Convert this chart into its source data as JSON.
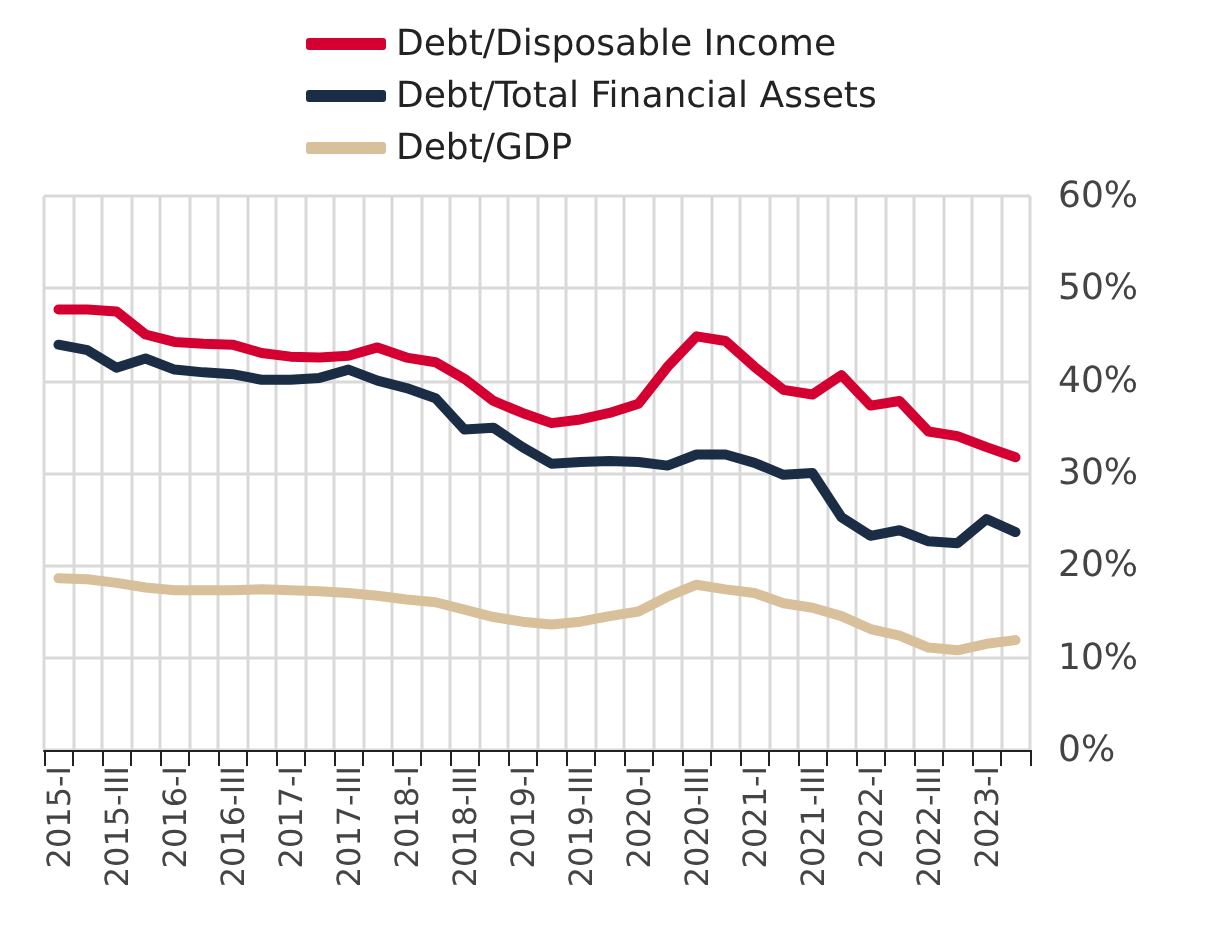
{
  "chart_data": {
    "type": "line",
    "categories": [
      "2015-I",
      null,
      "2015-III",
      null,
      "2016-I",
      null,
      "2016-III",
      null,
      "2017-I",
      null,
      "2017-III",
      null,
      "2018-I",
      null,
      "2018-III",
      null,
      "2019-I",
      null,
      "2019-III",
      null,
      "2020-I",
      null,
      "2020-III",
      null,
      "2021-I",
      null,
      "2021-III",
      null,
      "2022-I",
      null,
      "2022-III",
      null,
      "2023-I",
      null
    ],
    "series": [
      {
        "name": "Debt/Disposable Income",
        "color": "#d50032",
        "values": [
          47.7,
          47.7,
          47.5,
          45,
          44.2,
          44,
          43.9,
          43,
          42.6,
          42.5,
          42.7,
          43.6,
          42.5,
          42,
          40.2,
          37.8,
          36.5,
          35.4,
          35.8,
          36.5,
          37.5,
          41.5,
          44.8,
          44.3,
          41.5,
          39,
          38.5,
          40.6,
          37.3,
          37.8,
          34.5,
          34,
          32.8,
          31.7
        ]
      },
      {
        "name": "Debt/Total Financial Assets",
        "color": "#1b2d45",
        "values": [
          43.9,
          43.3,
          41.4,
          42.4,
          41.2,
          40.9,
          40.7,
          40.1,
          40.1,
          40.3,
          41.2,
          40,
          39.2,
          38.1,
          34.7,
          34.9,
          32.8,
          31,
          31.2,
          31.3,
          31.2,
          30.8,
          32,
          32,
          31.1,
          29.8,
          30,
          25.2,
          23.2,
          23.8,
          22.6,
          22.4,
          25,
          23.6
        ]
      },
      {
        "name": "Debt/GDP",
        "color": "#d8c09a",
        "values": [
          18.6,
          18.5,
          18.1,
          17.6,
          17.3,
          17.3,
          17.3,
          17.4,
          17.3,
          17.2,
          17,
          16.7,
          16.3,
          16,
          15.2,
          14.4,
          13.9,
          13.6,
          13.9,
          14.5,
          15,
          16.6,
          17.9,
          17.4,
          17,
          15.9,
          15.4,
          14.5,
          13.1,
          12.4,
          11.1,
          10.8,
          11.5,
          11.9
        ]
      }
    ],
    "ylim": [
      0,
      60
    ],
    "yticks": [
      {
        "value": 0,
        "label": "0%"
      },
      {
        "value": 10,
        "label": "10%"
      },
      {
        "value": 20,
        "label": "20%"
      },
      {
        "value": 30,
        "label": "30%"
      },
      {
        "value": 40,
        "label": "40%"
      },
      {
        "value": 50,
        "label": "50%"
      },
      {
        "value": 60,
        "label": "60%"
      }
    ],
    "grid": true,
    "legend": "top",
    "marker": "none",
    "line_style": "solid"
  }
}
